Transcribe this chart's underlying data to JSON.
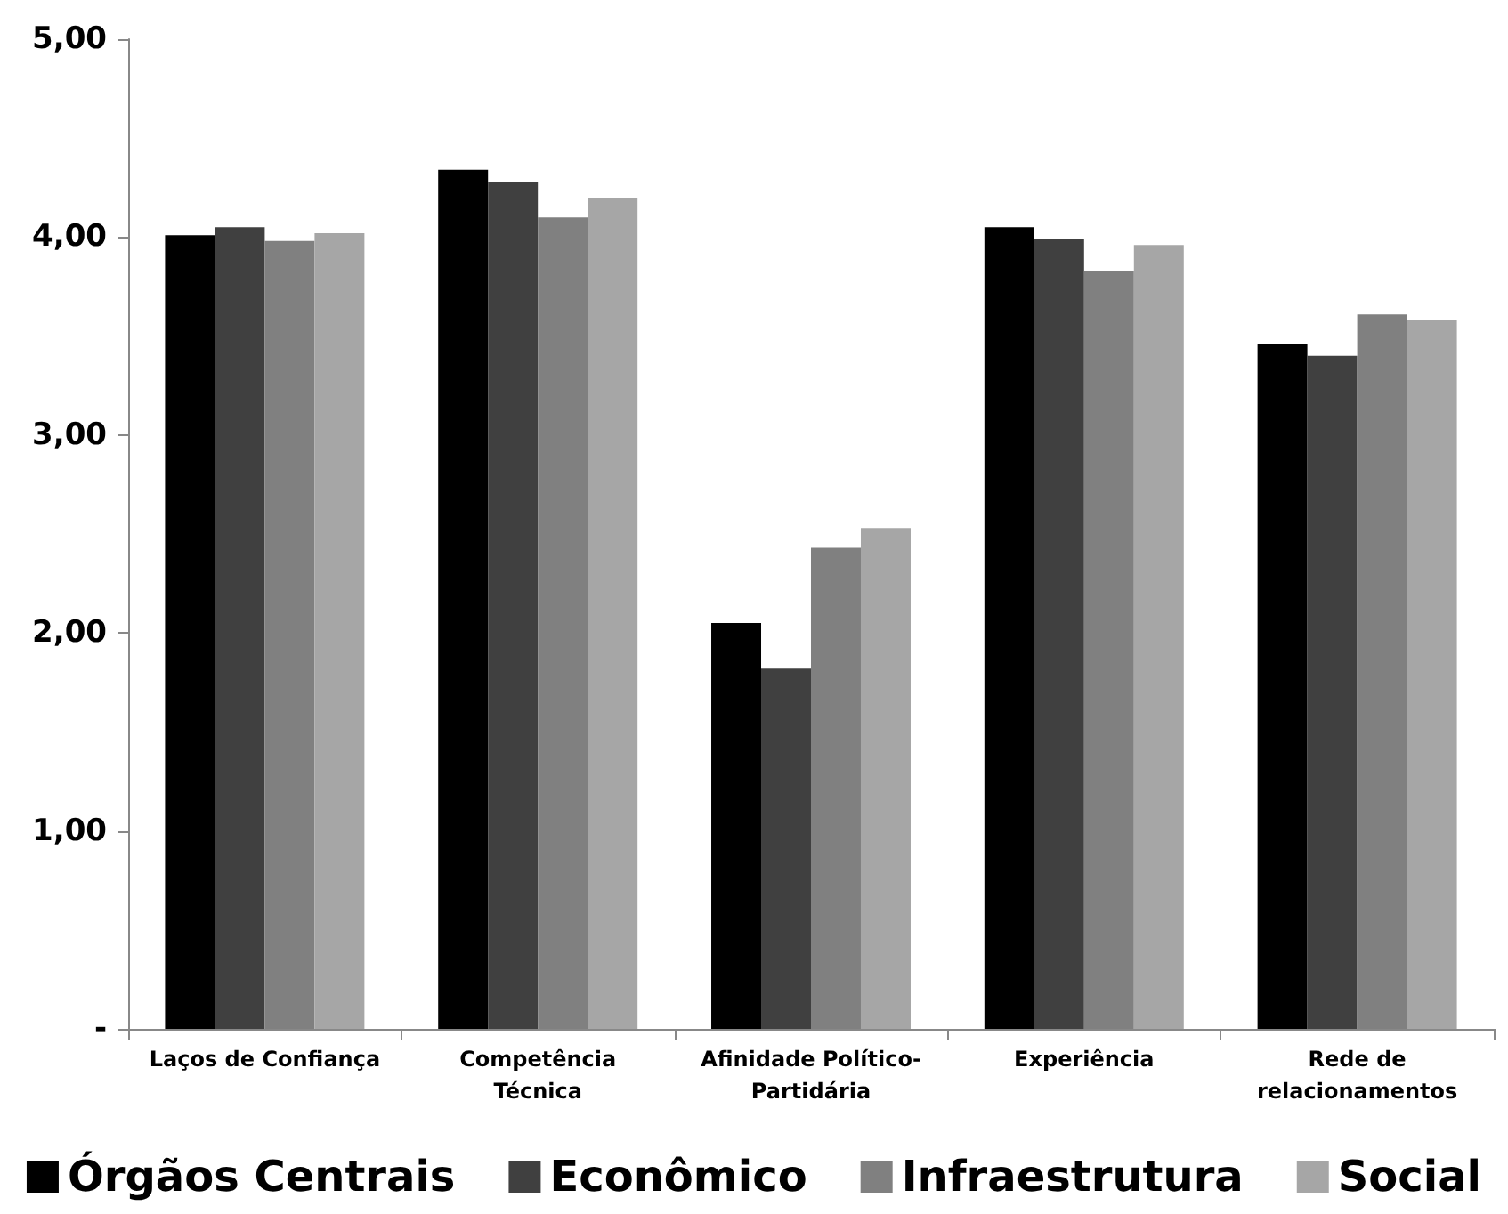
{
  "chart_data": {
    "type": "bar",
    "categories": [
      "Laços de Confiança",
      "Competência\nTécnica",
      "Afinidade Político-\nPartidária",
      "Experiência",
      "Rede de\nrelacionamentos"
    ],
    "series": [
      {
        "name": "Órgãos Centrais",
        "color": "#000000",
        "values": [
          4.01,
          4.34,
          2.05,
          4.05,
          3.46
        ]
      },
      {
        "name": "Econômico",
        "color": "#404040",
        "values": [
          4.05,
          4.28,
          1.82,
          3.99,
          3.4
        ]
      },
      {
        "name": "Infraestrutura",
        "color": "#808080",
        "values": [
          3.98,
          4.1,
          2.43,
          3.83,
          3.61
        ]
      },
      {
        "name": "Social",
        "color": "#a6a6a6",
        "values": [
          4.02,
          4.2,
          2.53,
          3.96,
          3.58
        ]
      }
    ],
    "ylim": [
      0,
      5
    ],
    "yticks": [
      {
        "value": 0,
        "label": "-"
      },
      {
        "value": 1,
        "label": "1,00"
      },
      {
        "value": 2,
        "label": "2,00"
      },
      {
        "value": 3,
        "label": "3,00"
      },
      {
        "value": 4,
        "label": "4,00"
      },
      {
        "value": 5,
        "label": "5,00"
      }
    ],
    "grid": false,
    "legend": "bottom"
  }
}
